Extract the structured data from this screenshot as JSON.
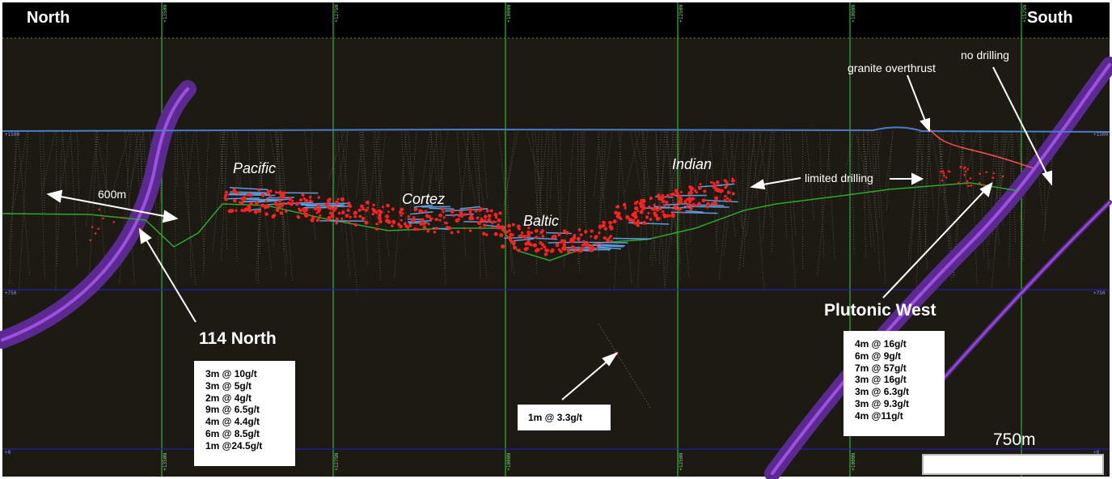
{
  "header": {
    "north": "North",
    "south": "South"
  },
  "grid_ticks": [
    "+1350N",
    "+1275N",
    "+1000N",
    "+1250N",
    "+1000N",
    "+1525N"
  ],
  "level_ticks": [
    "+1500",
    "+1500",
    "+750",
    "+750",
    "+0",
    "+0"
  ],
  "zones": {
    "pacific": "Pacific",
    "cortez": "Cortez",
    "baltic": "Baltic",
    "indian": "Indian"
  },
  "notes": {
    "distance": "600m",
    "limited_drilling": "limited drilling",
    "granite_overthrust": "granite overthrust",
    "no_drilling": "no drilling"
  },
  "targets": {
    "north_title": "114 North",
    "west_title": "Plutonic West"
  },
  "intercepts": {
    "north_114": [
      "3m @ 10g/t",
      "3m @ 5g/t",
      "2m @ 4g/t",
      "9m @ 6.5g/t",
      "4m @ 4.4g/t",
      "6m @ 8.5g/t",
      "1m @24.5g/t"
    ],
    "deep": [
      "1m @ 3.3g/t"
    ],
    "plutonic_west": [
      "4m @ 16g/t",
      "6m @ 9g/t",
      "7m @ 57g/t",
      "3m @ 16g/t",
      "3m @ 6.3g/t",
      "3m @ 9.3g/t",
      "4m @11g/t"
    ]
  },
  "scale": {
    "label": "750m"
  },
  "colors": {
    "background": "#1c1a12",
    "header_band": "#000000",
    "grid_vertical": "#2ea82e",
    "grid_horizontal": "#2020b0",
    "surface": "#4a7ccc",
    "contact": "#2ea82e",
    "mineralisation": "#ff2020",
    "lode": "#5aa0e0",
    "fault": "#8c3cc8",
    "overthrust": "#ff5050"
  }
}
